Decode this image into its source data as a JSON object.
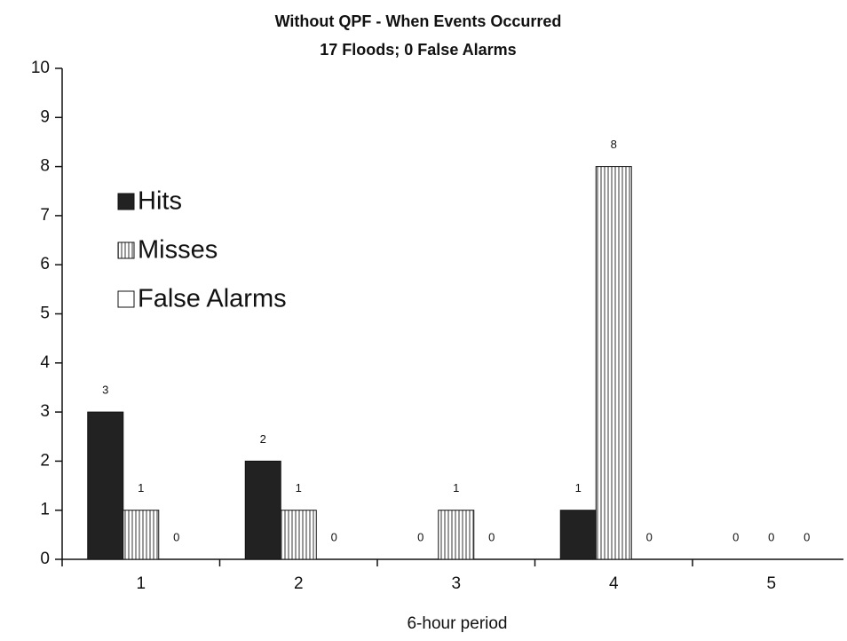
{
  "chart_data": {
    "type": "bar",
    "title": "Without QPF - When Events Occurred",
    "subtitle": "17 Floods; 0 False Alarms",
    "x_label": "6-hour period",
    "categories": [
      "1",
      "2",
      "3",
      "4",
      "5"
    ],
    "series": [
      {
        "name": "Hits",
        "color": "#222222",
        "values": [
          3,
          2,
          0,
          1,
          0
        ]
      },
      {
        "name": "Misses",
        "color": "#9a9a9a",
        "hatch": "vertical",
        "values": [
          1,
          1,
          1,
          8,
          0
        ]
      },
      {
        "name": "False Alarms",
        "color": "#ffffff",
        "values": [
          0,
          0,
          0,
          0,
          0
        ]
      }
    ],
    "ylim": [
      0,
      10
    ],
    "yticks": [
      0,
      1,
      2,
      3,
      4,
      5,
      6,
      7,
      8,
      9,
      10
    ],
    "legend": "left"
  }
}
